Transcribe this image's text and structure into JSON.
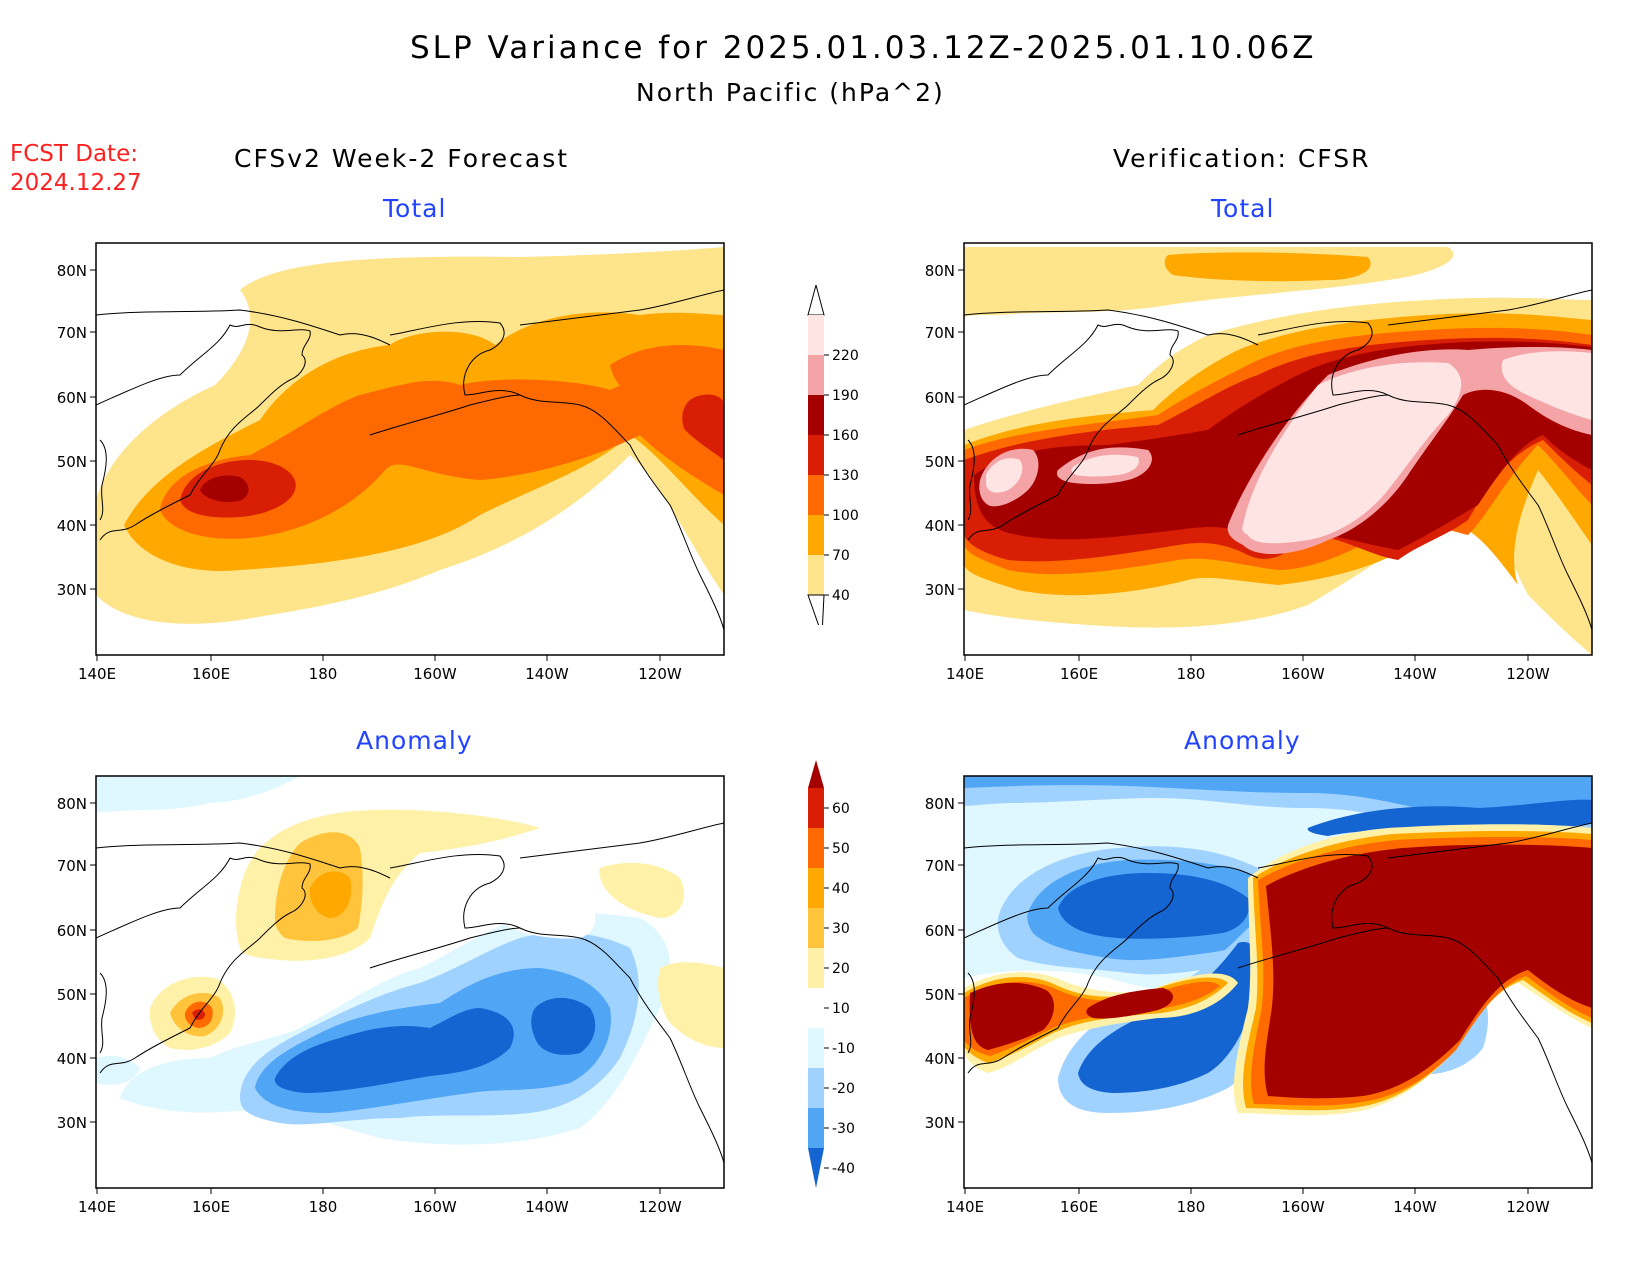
{
  "title": {
    "line1": "SLP Variance for 2025.01.03.12Z-2025.01.10.06Z",
    "line2": "North Pacific (hPa^2)"
  },
  "forecast_date": {
    "label": "FCST Date:",
    "value": "2024.12.27"
  },
  "columns": {
    "left": "CFSv2 Week-2 Forecast",
    "right": "Verification: CFSR"
  },
  "panel_titles": {
    "total": "Total",
    "anomaly": "Anomaly"
  },
  "axes": {
    "lat_ticks": [
      "80N",
      "70N",
      "60N",
      "50N",
      "40N",
      "30N"
    ],
    "lon_ticks": [
      "140E",
      "160E",
      "180",
      "160W",
      "140W",
      "120W"
    ]
  },
  "colorbar_total": {
    "levels": [
      "220",
      "190",
      "160",
      "130",
      "100",
      "70",
      "40"
    ],
    "colors": [
      "#ffe4e4",
      "#f4a3a6",
      "#a50000",
      "#d81e05",
      "#ff6a00",
      "#ffa800",
      "#fee48a"
    ]
  },
  "colorbar_anomaly": {
    "levels": [
      "60",
      "50",
      "40",
      "30",
      "20",
      "10",
      "-10",
      "-20",
      "-30",
      "-40"
    ],
    "colors": [
      "#a50000",
      "#d81e05",
      "#ff6a00",
      "#ffa800",
      "#ffc43c",
      "#fff1a8",
      "#ffffff",
      "#dff7ff",
      "#a0d2ff",
      "#50a5f5",
      "#1464d2"
    ]
  }
}
